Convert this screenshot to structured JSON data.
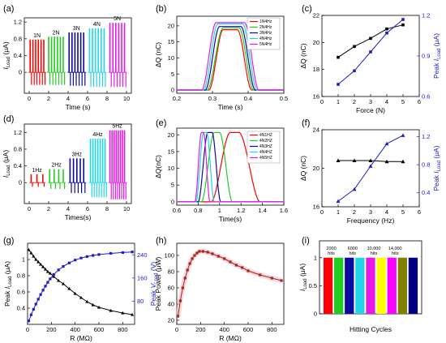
{
  "figure": {
    "panel_labels": [
      "(a)",
      "(b)",
      "(c)",
      "(d)",
      "(e)",
      "(f)",
      "(g)",
      "(h)",
      "(i)"
    ]
  },
  "chart_data": [
    {
      "id": "a",
      "type": "line",
      "title": "",
      "xlabel": "Time (s)",
      "ylabel": "I_Load (μA)",
      "xlim": [
        -0.5,
        10.5
      ],
      "ylim": [
        -0.5,
        1.3
      ],
      "xticks": [
        0,
        2,
        4,
        6,
        8,
        10
      ],
      "yticks": [
        0.0,
        0.4,
        0.8,
        1.2
      ],
      "annotations": [
        "1N",
        "2N",
        "3N",
        "4N",
        "5N"
      ],
      "groups": [
        {
          "label": "1N",
          "color": "#ff0000",
          "t_start": 0.1,
          "t_end": 1.5,
          "peak": 0.78,
          "neg": -0.3,
          "pulses": 6
        },
        {
          "label": "2N",
          "color": "#22cc22",
          "t_start": 2.0,
          "t_end": 3.5,
          "peak": 0.85,
          "neg": -0.3,
          "pulses": 6
        },
        {
          "label": "3N",
          "color": "#0a0aa0",
          "t_start": 4.1,
          "t_end": 5.6,
          "peak": 0.95,
          "neg": -0.32,
          "pulses": 6
        },
        {
          "label": "4N",
          "color": "#22d4e8",
          "t_start": 6.2,
          "t_end": 7.7,
          "peak": 1.05,
          "neg": -0.35,
          "pulses": 6
        },
        {
          "label": "5N",
          "color": "#e619e6",
          "t_start": 8.3,
          "t_end": 9.8,
          "peak": 1.18,
          "neg": -0.35,
          "pulses": 6
        }
      ]
    },
    {
      "id": "b",
      "type": "line",
      "title": "",
      "xlabel": "Time (s)",
      "ylabel": "ΔQ (nC)",
      "xlim": [
        0.2,
        0.5
      ],
      "ylim": [
        -1,
        23
      ],
      "xticks": [
        0.2,
        0.3,
        0.4,
        0.5
      ],
      "yticks": [
        0,
        5,
        10,
        15,
        20
      ],
      "legend_position": "top-right",
      "series": [
        {
          "name": "1N4Hz",
          "color": "#ff0000",
          "peak": 18.8,
          "rise": [
            0.29,
            0.33
          ],
          "fall": [
            0.37,
            0.41
          ]
        },
        {
          "name": "2N4Hz",
          "color": "#22cc22",
          "peak": 19.4,
          "rise": [
            0.285,
            0.33
          ],
          "fall": [
            0.375,
            0.415
          ]
        },
        {
          "name": "3N4Hz",
          "color": "#0a0aa0",
          "peak": 19.8,
          "rise": [
            0.28,
            0.32
          ],
          "fall": [
            0.38,
            0.42
          ]
        },
        {
          "name": "4N4Hz",
          "color": "#22d4e8",
          "peak": 20.6,
          "rise": [
            0.275,
            0.315
          ],
          "fall": [
            0.385,
            0.425
          ]
        },
        {
          "name": "5N4Hz",
          "color": "#e619e6",
          "peak": 21.0,
          "rise": [
            0.27,
            0.31
          ],
          "fall": [
            0.39,
            0.43
          ]
        }
      ]
    },
    {
      "id": "c",
      "type": "line",
      "title": "",
      "xlabel": "Force (N)",
      "ylabel": "ΔQ (nC)",
      "ylabel_right": "Peak I_Load (μA)",
      "xlim": [
        0,
        6
      ],
      "ylim": [
        16,
        22
      ],
      "ylim_right": [
        0.6,
        1.2
      ],
      "xticks": [
        0,
        1,
        2,
        3,
        4,
        5,
        6
      ],
      "yticks": [
        16,
        18,
        20,
        22
      ],
      "yticks_right": [
        0.6,
        0.9,
        1.2
      ],
      "series": [
        {
          "name": "ΔQ",
          "axis": "left",
          "color": "#000000",
          "marker": "square",
          "x": [
            1,
            2,
            3,
            4,
            5
          ],
          "values": [
            18.9,
            19.7,
            20.3,
            21.0,
            21.3
          ]
        },
        {
          "name": "Peak I_Load",
          "axis": "right",
          "color": "#1c1cc8",
          "marker": "square",
          "x": [
            1,
            2,
            3,
            4,
            5
          ],
          "values": [
            0.69,
            0.79,
            0.93,
            1.07,
            1.17
          ]
        }
      ]
    },
    {
      "id": "d",
      "type": "line",
      "title": "",
      "xlabel": "Times(s)",
      "ylabel": "I_Load (μA)",
      "xlim": [
        -0.5,
        10.5
      ],
      "ylim": [
        -0.5,
        1.4
      ],
      "xticks": [
        0,
        2,
        4,
        6,
        8,
        10
      ],
      "yticks": [
        0.0,
        0.4,
        0.8,
        1.2
      ],
      "annotations": [
        "1Hz",
        "2Hz",
        "3Hz",
        "4Hz",
        "5Hz"
      ],
      "groups": [
        {
          "label": "1Hz",
          "color": "#ff0000",
          "t_start": 0.2,
          "t_end": 1.4,
          "peak": 0.2,
          "neg": -0.1,
          "pulses": 3
        },
        {
          "label": "2Hz",
          "color": "#22cc22",
          "t_start": 2.1,
          "t_end": 3.5,
          "peak": 0.32,
          "neg": -0.15,
          "pulses": 4
        },
        {
          "label": "3Hz",
          "color": "#0a0aa0",
          "t_start": 4.2,
          "t_end": 5.6,
          "peak": 0.58,
          "neg": -0.25,
          "pulses": 5
        },
        {
          "label": "4Hz",
          "color": "#22d4e8",
          "t_start": 6.3,
          "t_end": 7.8,
          "peak": 1.05,
          "neg": -0.35,
          "pulses": 7
        },
        {
          "label": "5Hz",
          "color": "#e619e6",
          "t_start": 8.3,
          "t_end": 9.8,
          "peak": 1.25,
          "neg": -0.4,
          "pulses": 8
        }
      ]
    },
    {
      "id": "e",
      "type": "line",
      "title": "",
      "xlabel": "Time(s)",
      "ylabel": "ΔQ(nC)",
      "xlim": [
        0.6,
        1.6
      ],
      "ylim": [
        -1,
        22
      ],
      "xticks": [
        0.6,
        0.8,
        1.0,
        1.2,
        1.4,
        1.6
      ],
      "yticks": [
        0,
        5,
        10,
        15,
        20
      ],
      "legend_position": "top-right",
      "series": [
        {
          "name": "4N1HZ",
          "color": "#ff0000",
          "peak": 20.7,
          "rise": [
            0.92,
            1.1
          ],
          "fall": [
            1.18,
            1.38
          ]
        },
        {
          "name": "4N2HZ",
          "color": "#22cc22",
          "peak": 20.7,
          "rise": [
            0.83,
            0.95
          ],
          "fall": [
            1.0,
            1.12
          ]
        },
        {
          "name": "4N3HZ",
          "color": "#0a0aa0",
          "peak": 20.7,
          "rise": [
            0.8,
            0.89
          ],
          "fall": [
            0.93,
            1.01
          ]
        },
        {
          "name": "4N4HZ",
          "color": "#22d4e8",
          "peak": 20.7,
          "rise": [
            0.78,
            0.85
          ],
          "fall": [
            0.88,
            0.95
          ]
        },
        {
          "name": "4N5HZ",
          "color": "#e619e6",
          "peak": 20.7,
          "rise": [
            0.77,
            0.83
          ],
          "fall": [
            0.85,
            0.91
          ]
        }
      ]
    },
    {
      "id": "f",
      "type": "line",
      "title": "",
      "xlabel": "Frequency (Hz)",
      "ylabel": "ΔQ (nC)",
      "ylabel_right": "Peak I_Load (μA)",
      "xlim": [
        0,
        6
      ],
      "ylim": [
        16,
        24
      ],
      "ylim_right": [
        0.2,
        1.3
      ],
      "xticks": [
        0,
        1,
        2,
        3,
        4,
        5,
        6
      ],
      "yticks": [
        16,
        20,
        24
      ],
      "yticks_right": [
        0.4,
        0.8,
        1.2
      ],
      "series": [
        {
          "name": "ΔQ",
          "axis": "left",
          "color": "#000000",
          "marker": "triangle",
          "x": [
            1,
            2,
            3,
            4,
            5
          ],
          "values": [
            20.8,
            20.8,
            20.8,
            20.7,
            20.7
          ]
        },
        {
          "name": "Peak I_Load",
          "axis": "right",
          "color": "#1c1cc8",
          "marker": "triangle",
          "x": [
            1,
            2,
            3,
            4,
            5
          ],
          "values": [
            0.28,
            0.45,
            0.78,
            1.1,
            1.22
          ]
        }
      ]
    },
    {
      "id": "g",
      "type": "line",
      "title": "",
      "xlabel": "R (MΩ)",
      "ylabel": "Peak I_Load (μA)",
      "ylabel_right": "Peak V_Load (V)",
      "xlim": [
        0,
        900
      ],
      "ylim": [
        0.2,
        1.2
      ],
      "ylim_right": [
        0,
        280
      ],
      "xticks": [
        0,
        200,
        400,
        600,
        800
      ],
      "yticks": [
        0.4,
        0.6,
        0.8,
        1.0
      ],
      "yticks_right": [
        80,
        160,
        240
      ],
      "series": [
        {
          "name": "Peak I_Load",
          "axis": "left",
          "color": "#000000",
          "marker": "triangle",
          "x": [
            10,
            30,
            50,
            70,
            90,
            110,
            130,
            150,
            170,
            190,
            220,
            260,
            300,
            350,
            400,
            450,
            500,
            550,
            600,
            700,
            800,
            880
          ],
          "values": [
            1.12,
            1.08,
            1.04,
            1.0,
            0.97,
            0.94,
            0.91,
            0.88,
            0.85,
            0.83,
            0.79,
            0.74,
            0.7,
            0.64,
            0.58,
            0.53,
            0.48,
            0.44,
            0.41,
            0.37,
            0.34,
            0.32
          ]
        },
        {
          "name": "Peak V_Load",
          "axis": "right",
          "color": "#1c1cc8",
          "marker": "square",
          "x": [
            10,
            30,
            50,
            70,
            90,
            110,
            130,
            150,
            170,
            190,
            220,
            260,
            300,
            350,
            400,
            450,
            500,
            550,
            600,
            700,
            800,
            880
          ],
          "values": [
            12,
            33,
            52,
            70,
            87,
            103,
            118,
            132,
            145,
            157,
            172,
            188,
            200,
            212,
            222,
            229,
            234,
            238,
            241,
            245,
            248,
            250
          ]
        }
      ]
    },
    {
      "id": "h",
      "type": "line",
      "title": "",
      "xlabel": "R (MΩ)",
      "ylabel": "Peak Power (μW)",
      "xlim": [
        0,
        900
      ],
      "ylim": [
        15,
        115
      ],
      "xticks": [
        0,
        200,
        400,
        600,
        800
      ],
      "yticks": [
        20,
        40,
        60,
        80,
        100
      ],
      "series": [
        {
          "name": "Peak Power",
          "color": "#a0281e",
          "marker": "square",
          "x": [
            10,
            30,
            50,
            70,
            90,
            110,
            130,
            150,
            170,
            190,
            220,
            260,
            300,
            350,
            400,
            450,
            500,
            550,
            600,
            700,
            800,
            880
          ],
          "values": [
            25,
            44,
            60,
            72,
            82,
            90,
            96,
            100,
            103,
            105,
            105,
            104,
            102,
            99,
            96,
            92,
            88,
            85,
            81,
            76,
            72,
            69
          ]
        }
      ]
    },
    {
      "id": "i",
      "type": "bar",
      "title": "",
      "xlabel": "Hitting Cycles",
      "ylabel": "I_Load (μA)",
      "ylim": [
        0,
        1.3
      ],
      "yticks": [
        0.0,
        0.5,
        1.0
      ],
      "annotations": [
        "2000 hits",
        "6000 hits",
        "10,000 hits",
        "14,000 hits"
      ],
      "bars": [
        {
          "color": "#ff0000",
          "value": 1.0
        },
        {
          "color": "#22cc22",
          "value": 1.0
        },
        {
          "color": "#0a0aa0",
          "value": 1.0
        },
        {
          "color": "#22d4e8",
          "value": 1.0
        },
        {
          "color": "#e619e6",
          "value": 1.0
        },
        {
          "color": "#ffff00",
          "value": 1.0
        },
        {
          "color": "#ff00ff",
          "value": 1.0
        },
        {
          "color": "#808000",
          "value": 1.0
        },
        {
          "color": "#000080",
          "value": 1.0
        }
      ]
    }
  ]
}
